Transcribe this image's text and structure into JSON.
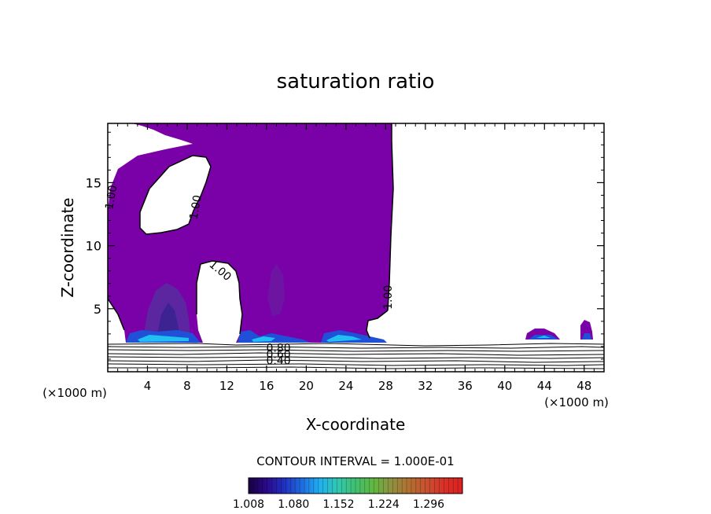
{
  "chart_data": {
    "type": "contour",
    "title": "saturation ratio",
    "xlabel": "X-coordinate",
    "ylabel": "Z-coordinate",
    "x_unit": "(×1000 m)",
    "y_unit": "(×1000 m)",
    "xlim": [
      0,
      50
    ],
    "ylim": [
      0,
      19.7
    ],
    "x_ticks": [
      "4",
      "8",
      "12",
      "16",
      "20",
      "24",
      "28",
      "32",
      "36",
      "40",
      "44",
      "48"
    ],
    "y_ticks": [
      "5",
      "10",
      "15"
    ],
    "contour_interval_text": "CONTOUR INTERVAL = 1.000E-01",
    "contour_labels": [
      {
        "text": "1.00",
        "x": 0.7,
        "y": 13.8,
        "angle": -80
      },
      {
        "text": "1.00",
        "x": 9.2,
        "y": 13.0,
        "angle": -80
      },
      {
        "text": "1.00",
        "x": 11.1,
        "y": 7.8,
        "angle": 40
      },
      {
        "text": "1.00",
        "x": 28.6,
        "y": 5.9,
        "angle": -90
      },
      {
        "text": "0.80",
        "x": 17.2,
        "y": 1.6,
        "angle": 0
      },
      {
        "text": "0.60",
        "x": 17.2,
        "y": 1.1,
        "angle": 0
      },
      {
        "text": "0.40",
        "x": 17.2,
        "y": 0.6,
        "angle": 0
      }
    ],
    "colorbar": {
      "ticks": [
        "1.008",
        "1.080",
        "1.152",
        "1.224",
        "1.296"
      ],
      "min": 1.008,
      "max": 1.35,
      "colors": [
        "#1a0040",
        "#2a0a8a",
        "#2030c0",
        "#1e6de0",
        "#20b0f0",
        "#30c8b0",
        "#40c070",
        "#60b840",
        "#909040",
        "#b07030",
        "#c85030",
        "#d83028",
        "#e02020"
      ]
    },
    "fill_color": "#7a00a8"
  }
}
